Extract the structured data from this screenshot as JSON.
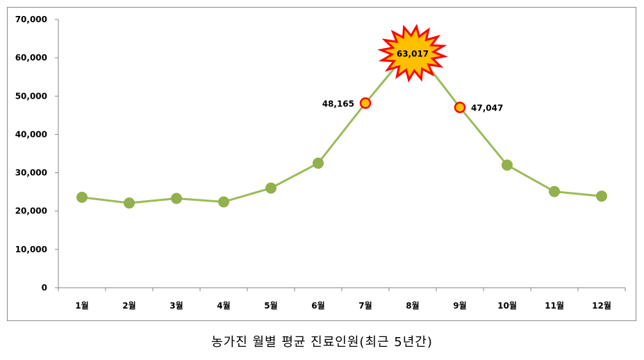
{
  "caption": "농가진 월별 평균 진료인원(최근 5년간)",
  "chart_data": {
    "type": "line",
    "categories": [
      "1월",
      "2월",
      "3월",
      "4월",
      "5월",
      "6월",
      "7월",
      "8월",
      "9월",
      "10월",
      "11월",
      "12월"
    ],
    "values": [
      23600,
      22100,
      23300,
      22400,
      26000,
      32500,
      48165,
      63017,
      47047,
      32000,
      25100,
      23900
    ],
    "ylim": [
      0,
      70000
    ],
    "yticks": [
      0,
      10000,
      20000,
      30000,
      40000,
      50000,
      60000,
      70000
    ],
    "ytick_labels": [
      "0",
      "10,000",
      "20,000",
      "30,000",
      "40,000",
      "50,000",
      "60,000",
      "70,000"
    ],
    "grid": false,
    "highlighted_labels": [
      {
        "category": "7월",
        "label": "48,165"
      },
      {
        "category": "8월",
        "label": "63,017"
      },
      {
        "category": "9월",
        "label": "47,047"
      }
    ],
    "colors": {
      "line": "#9bbb59",
      "marker": "#92b04c",
      "highlight_fill": "#ffc000",
      "highlight_stroke": "#ff0000"
    }
  }
}
